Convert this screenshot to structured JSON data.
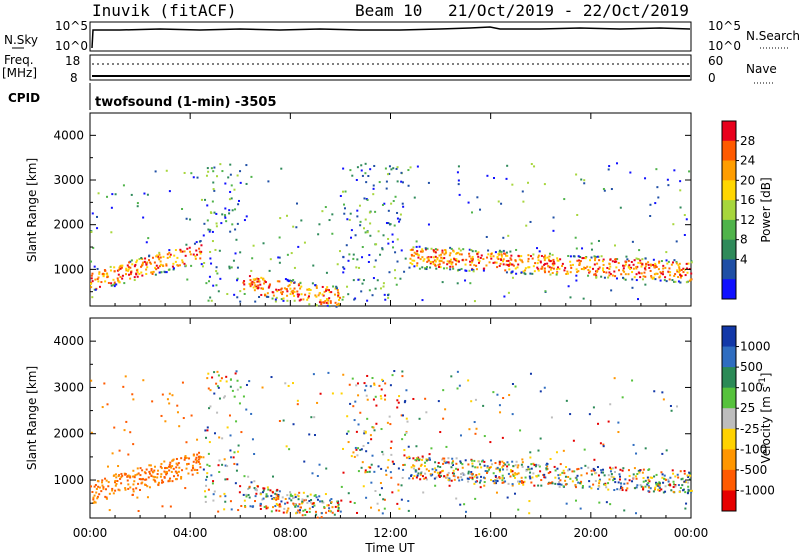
{
  "header": {
    "station": "Inuvik (fitACF)",
    "beam": "Beam 10",
    "date_range": "21/Oct/2019 - 22/Oct/2019"
  },
  "top_panels": {
    "nsky": {
      "label": "N.Sky",
      "ticks_left": [
        "10^5",
        "10^0"
      ],
      "ticks_right": [
        "10^5",
        "10^0"
      ],
      "right_label": "N.Search"
    },
    "freq": {
      "label_line1": "Freq.",
      "label_line2": "[MHz]",
      "ticks_left": [
        "18",
        "8"
      ],
      "ticks_right": [
        "60",
        "0"
      ],
      "right_label": "Nave"
    },
    "cpid": {
      "label": "CPID",
      "text": "twofsound (1-min) -3505"
    }
  },
  "chart_data": [
    {
      "type": "heatmap",
      "name": "Power",
      "ylabel": "Slant Range [km]",
      "xlabel": "",
      "ylim": [
        180,
        4500
      ],
      "yticks": [
        1000,
        2000,
        3000,
        4000
      ],
      "xlim_hours": [
        0,
        24
      ],
      "colorbar": {
        "label": "Power [dB]",
        "ticks": [
          "28",
          "24",
          "20",
          "16",
          "12",
          "8",
          "4"
        ],
        "colors": [
          "#e8001c",
          "#ff5a00",
          "#ff9d00",
          "#ffd600",
          "#a7d63c",
          "#4fb34a",
          "#2f8a5a",
          "#1f4fa5",
          "#1010ff"
        ]
      }
    },
    {
      "type": "heatmap",
      "name": "Velocity",
      "ylabel": "Slant Range [km]",
      "xlabel": "Time UT",
      "ylim": [
        180,
        4500
      ],
      "yticks": [
        1000,
        2000,
        3000,
        4000
      ],
      "xlim_hours": [
        0,
        24
      ],
      "xticks": [
        "00:00",
        "04:00",
        "08:00",
        "12:00",
        "16:00",
        "20:00",
        "00:00"
      ],
      "colorbar": {
        "label": "Velocity [m s",
        "label_sup": "-1",
        "label_end": "]",
        "ticks": [
          "1000",
          "500",
          "100",
          "25",
          "-25",
          "-100",
          "-500",
          "-1000"
        ],
        "colors": [
          "#1238a8",
          "#2f6dc0",
          "#2b8a56",
          "#56c23c",
          "#bdbdbd",
          "#ffd200",
          "#ff9600",
          "#ff5a00",
          "#e60000"
        ]
      }
    }
  ]
}
